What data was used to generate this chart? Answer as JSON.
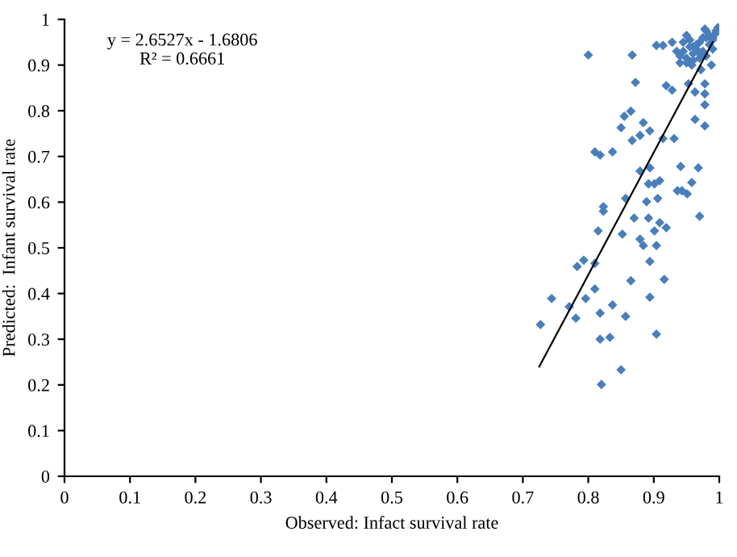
{
  "chart_data": {
    "type": "scatter",
    "xlabel": "Observed: Infact survival rate",
    "ylabel": "Predicted:  Infant survival rate",
    "xlim": [
      0,
      1
    ],
    "ylim": [
      0,
      1
    ],
    "xticks": [
      0,
      0.1,
      0.2,
      0.3,
      0.4,
      0.5,
      0.6,
      0.7,
      0.8,
      0.9,
      1
    ],
    "yticks": [
      0,
      0.1,
      0.2,
      0.3,
      0.4,
      0.5,
      0.6,
      0.7,
      0.8,
      0.9,
      1
    ],
    "grid": false,
    "legend": false,
    "annotations": [
      "y = 2.6527x - 1.6806\nR² = 0.6661"
    ],
    "series": [
      {
        "color": "#4a7ebb",
        "marker": "diamond",
        "x": [
          0.8,
          0.867,
          0.904,
          0.914,
          0.928,
          0.978,
          0.998,
          0.872,
          0.919,
          0.928,
          0.953,
          0.978,
          0.963,
          0.978,
          0.978,
          0.865,
          0.855,
          0.884,
          0.85,
          0.894,
          0.963,
          0.978,
          0.867,
          0.879,
          0.914,
          0.931,
          0.81,
          0.818,
          0.837,
          0.894,
          0.879,
          0.941,
          0.968,
          0.892,
          0.901,
          0.909,
          0.958,
          0.936,
          0.943,
          0.951,
          0.857,
          0.889,
          0.906,
          0.823,
          0.823,
          0.87,
          0.892,
          0.97,
          0.815,
          0.852,
          0.901,
          0.909,
          0.919,
          0.879,
          0.884,
          0.904,
          0.793,
          0.783,
          0.81,
          0.894,
          0.865,
          0.916,
          0.81,
          0.744,
          0.796,
          0.894,
          0.771,
          0.837,
          0.818,
          0.781,
          0.857,
          0.727,
          0.818,
          0.833,
          0.904,
          0.85,
          0.82,
          0.94,
          0.945,
          0.95,
          0.955,
          0.96,
          0.965,
          0.97,
          0.975,
          0.98,
          0.985,
          0.99,
          0.995,
          0.94,
          0.95,
          0.96,
          0.97,
          0.98,
          0.99,
          0.945,
          0.955,
          0.965,
          0.975,
          0.985,
          0.95,
          0.96,
          0.97,
          0.98,
          0.99,
          0.935,
          0.958,
          0.972,
          0.988,
          0.995
        ],
        "values": [
          0.922,
          0.922,
          0.943,
          0.943,
          0.95,
          0.979,
          0.982,
          0.862,
          0.855,
          0.845,
          0.859,
          0.859,
          0.841,
          0.837,
          0.813,
          0.799,
          0.788,
          0.774,
          0.763,
          0.756,
          0.781,
          0.767,
          0.735,
          0.746,
          0.739,
          0.739,
          0.71,
          0.703,
          0.71,
          0.675,
          0.668,
          0.678,
          0.675,
          0.64,
          0.64,
          0.647,
          0.643,
          0.625,
          0.625,
          0.618,
          0.608,
          0.601,
          0.608,
          0.59,
          0.58,
          0.565,
          0.565,
          0.569,
          0.537,
          0.53,
          0.537,
          0.555,
          0.544,
          0.519,
          0.505,
          0.505,
          0.473,
          0.459,
          0.466,
          0.47,
          0.428,
          0.431,
          0.41,
          0.389,
          0.389,
          0.392,
          0.371,
          0.375,
          0.357,
          0.346,
          0.35,
          0.332,
          0.3,
          0.304,
          0.311,
          0.233,
          0.201,
          0.92,
          0.93,
          0.915,
          0.94,
          0.925,
          0.935,
          0.95,
          0.93,
          0.96,
          0.945,
          0.955,
          0.97,
          0.905,
          0.905,
          0.91,
          0.915,
          0.92,
          0.935,
          0.95,
          0.955,
          0.945,
          0.96,
          0.965,
          0.965,
          0.94,
          0.925,
          0.975,
          0.96,
          0.93,
          0.9,
          0.89,
          0.9,
          0.975
        ]
      },
      {
        "type": "line",
        "color": "#000000",
        "marker": "none",
        "x": [
          0.725,
          0.99
        ],
        "values": [
          0.24,
          0.95
        ]
      }
    ]
  }
}
